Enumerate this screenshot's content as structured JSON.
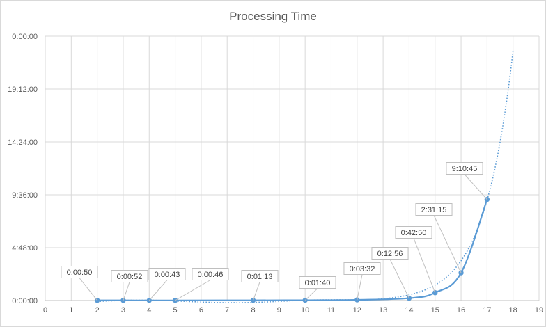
{
  "chart_data": {
    "type": "line",
    "title": "Processing Time",
    "xlabel": "",
    "ylabel": "",
    "xlim": [
      0,
      19
    ],
    "xticks": [
      0,
      1,
      2,
      3,
      4,
      5,
      6,
      7,
      8,
      9,
      10,
      11,
      12,
      13,
      14,
      15,
      16,
      17,
      18,
      19
    ],
    "ylim_seconds": [
      0,
      86400
    ],
    "yticks": [
      {
        "value": 0,
        "label": "0:00:00"
      },
      {
        "value": 17280,
        "label": "4:48:00"
      },
      {
        "value": 34560,
        "label": "9:36:00"
      },
      {
        "value": 51840,
        "label": "14:24:00"
      },
      {
        "value": 69120,
        "label": "19:12:00"
      },
      {
        "value": 86400,
        "label": "0:00:00"
      }
    ],
    "grid": true,
    "legend": "none",
    "series": [
      {
        "style": "solid line with markers",
        "color": "#5b9bd5",
        "x": [
          2,
          3,
          4,
          5,
          8,
          10,
          12,
          14,
          15,
          16,
          17
        ],
        "y": [
          50,
          52,
          43,
          46,
          73,
          100,
          212,
          776,
          2570,
          9075,
          33045
        ],
        "labels": [
          "0:00:50",
          "0:00:52",
          "0:00:43",
          "0:00:46",
          "0:01:13",
          "0:01:40",
          "0:03:32",
          "0:12:56",
          "0:42:50",
          "2:31:15",
          "9:10:45"
        ]
      },
      {
        "style": "dotted trendline",
        "color": "#5b9bd5",
        "x": [
          2,
          17,
          18
        ],
        "y": [
          -300,
          33045,
          82000
        ]
      }
    ]
  }
}
